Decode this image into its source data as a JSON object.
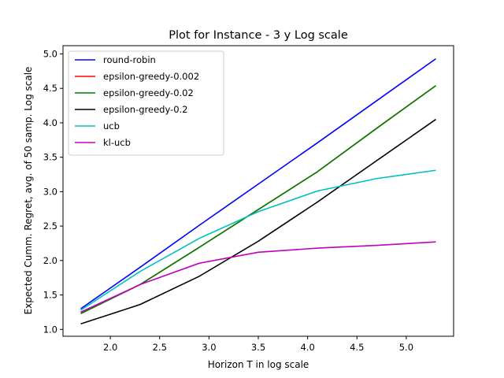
{
  "chart_data": {
    "type": "line",
    "title": "Plot for Instance - 3 y Log scale",
    "xlabel": "Horizon T in log scale",
    "ylabel": "Expected Cumm. Regret, avg. of 50 samp. Log scale",
    "xlim": [
      1.52,
      5.48
    ],
    "ylim": [
      0.9,
      5.12
    ],
    "xticks": [
      2.0,
      2.5,
      3.0,
      3.5,
      4.0,
      4.5,
      5.0
    ],
    "xtick_labels": [
      "2.0",
      "2.5",
      "3.0",
      "3.5",
      "4.0",
      "4.5",
      "5.0"
    ],
    "yticks": [
      1.0,
      1.5,
      2.0,
      2.5,
      3.0,
      3.5,
      4.0,
      4.5,
      5.0
    ],
    "ytick_labels": [
      "1.0",
      "1.5",
      "2.0",
      "2.5",
      "3.0",
      "3.5",
      "4.0",
      "4.5",
      "5.0"
    ],
    "grid": false,
    "legend_position": "top-left",
    "x": [
      1.7,
      2.3,
      2.9,
      3.5,
      4.1,
      4.7,
      5.3
    ],
    "series": [
      {
        "name": "round-robin",
        "color": "#0000ff",
        "values": [
          1.3,
          1.9,
          2.51,
          3.11,
          3.71,
          4.32,
          4.93
        ]
      },
      {
        "name": "epsilon-greedy-0.002",
        "color": "#ff0000",
        "values": [
          1.23,
          1.65,
          2.19,
          2.74,
          3.29,
          3.92,
          4.54
        ]
      },
      {
        "name": "epsilon-greedy-0.02",
        "color": "#008000",
        "values": [
          1.23,
          1.65,
          2.19,
          2.74,
          3.29,
          3.92,
          4.54
        ]
      },
      {
        "name": "epsilon-greedy-0.2",
        "color": "#000000",
        "values": [
          1.08,
          1.36,
          1.77,
          2.28,
          2.85,
          3.45,
          4.05
        ]
      },
      {
        "name": "ucb",
        "color": "#00bfbf",
        "values": [
          1.28,
          1.84,
          2.32,
          2.71,
          3.01,
          3.19,
          3.31
        ]
      },
      {
        "name": "kl-ucb",
        "color": "#bf00bf",
        "values": [
          1.25,
          1.65,
          1.96,
          2.12,
          2.18,
          2.22,
          2.27
        ]
      }
    ]
  }
}
